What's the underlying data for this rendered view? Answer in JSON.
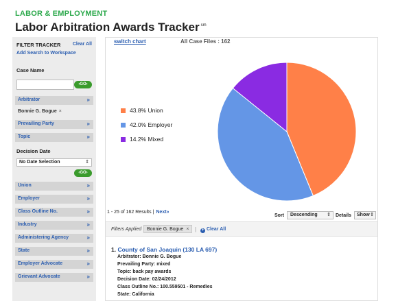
{
  "header": {
    "kicker": "LABOR & EMPLOYMENT",
    "title": "Labor Arbitration Awards Tracker",
    "title_mark": "sm"
  },
  "sidebar": {
    "filter_tracker": "FILTER TRACKER",
    "clear_all": "Clear All",
    "add_search": "Add Search to Workspace",
    "case_name_label": "Case Name",
    "case_name_value": "",
    "go_label": "GO",
    "arbitrator": "Arbitrator",
    "arbitrator_chip": "Bonnie G. Bogue",
    "prevailing_party": "Prevailing Party",
    "topic": "Topic",
    "decision_date_label": "Decision Date",
    "decision_date_select": "No Date Selection",
    "sections": [
      "Union",
      "Employer",
      "Class Outline No.",
      "Industry",
      "Administering Agency",
      "State",
      "Employer Advocate",
      "Grievant Advocate"
    ],
    "chevron": "»",
    "remove_glyph": "×"
  },
  "main": {
    "switch_chart": "switch chart",
    "all_case_files": "All Case Files : 162",
    "results_text": "1 - 25 of 162 Results",
    "results_sep": "|",
    "next_label": "Next»",
    "sort_label": "Sort",
    "sort_value": "Descending",
    "details_label": "Details",
    "details_value": "Show",
    "filters_applied_label": "Filters Applied",
    "filter_chip": "Bonnie G. Bogue",
    "filter_sep": "|",
    "clear_all": "Clear All",
    "colors": {
      "link": "#2a5db0",
      "green": "#3a9b2c",
      "kicker": "#2aa84a"
    }
  },
  "chart_data": {
    "type": "pie",
    "slices": [
      {
        "label": "43.8% Union",
        "value": 43.8,
        "color": "#ff8048"
      },
      {
        "label": "42.0% Employer",
        "value": 42.0,
        "color": "#6496e6"
      },
      {
        "label": "14.2% Mixed",
        "value": 14.2,
        "color": "#8a2be2"
      }
    ],
    "legend_placement": "left"
  },
  "case": {
    "number": "1.",
    "title": "County of San Joaquin (130 LA 697)",
    "fields": [
      "Arbitrator: Bonnie G. Bogue",
      "Prevailing Party: mixed",
      "Topic: back pay awards",
      "Decision Date: 02/24/2012",
      "Class Outline No.: 100.559501 - Remedies",
      "State: California"
    ]
  }
}
